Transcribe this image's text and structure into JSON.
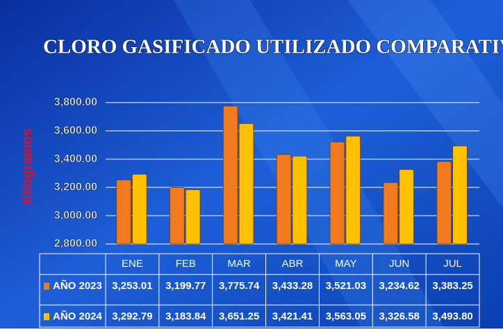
{
  "chart_data": {
    "type": "bar",
    "title": "CLORO GASIFICADO UTILIZADO COMPARATIVO",
    "y_label": "Kilogramos",
    "categories": [
      "ENE",
      "FEB",
      "MAR",
      "ABR",
      "MAY",
      "JUN",
      "JUL"
    ],
    "series": [
      {
        "name": "AÑO 2023",
        "color": "#f07a1e",
        "values": [
          3253.01,
          3199.77,
          3775.74,
          3433.28,
          3521.03,
          3234.62,
          3383.25
        ],
        "value_labels": [
          "3,253.01",
          "3,199.77",
          "3,775.74",
          "3,433.28",
          "3,521.03",
          "3,234.62",
          "3,383.25"
        ]
      },
      {
        "name": "AÑO 2024",
        "color": "#ffc000",
        "values": [
          3292.79,
          3183.84,
          3651.25,
          3421.41,
          3563.05,
          3326.58,
          3493.8
        ],
        "value_labels": [
          "3,292.79",
          "3,183.84",
          "3,651.25",
          "3,421.41",
          "3,563.05",
          "3,326.58",
          "3,493.80"
        ]
      }
    ],
    "ylim": [
      2800,
      3800
    ],
    "yticks": [
      {
        "value": 2800,
        "label": "2,800.00"
      },
      {
        "value": 3000,
        "label": "3,000.00"
      },
      {
        "value": 3200,
        "label": "3,200.00"
      },
      {
        "value": 3400,
        "label": "3,400.00"
      },
      {
        "value": 3600,
        "label": "3,600.00"
      },
      {
        "value": 3800,
        "label": "3,800.00"
      }
    ],
    "grid": true
  }
}
